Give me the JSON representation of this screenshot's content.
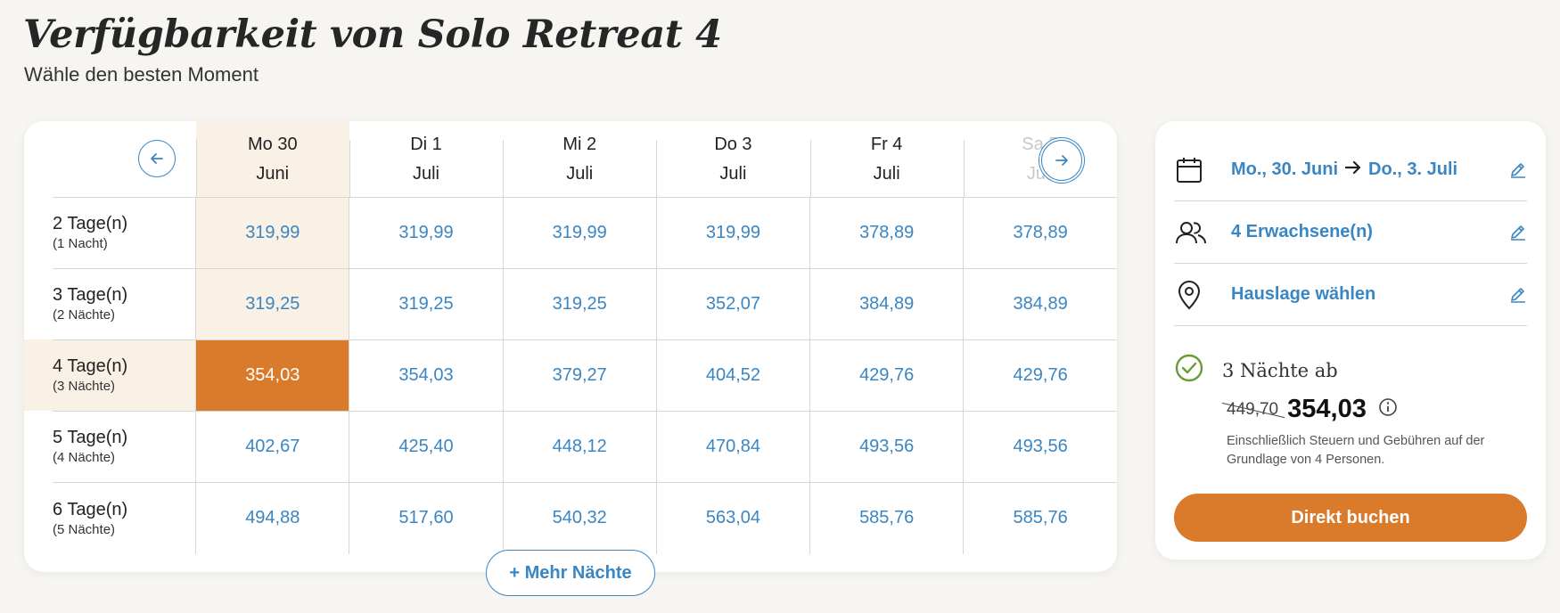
{
  "header": {
    "title": "Verfügbarkeit von Solo Retreat 4",
    "subtitle": "Wähle den besten Moment"
  },
  "calendar": {
    "columns": [
      {
        "day": "Mo 30",
        "month": "Juni"
      },
      {
        "day": "Di 1",
        "month": "Juli"
      },
      {
        "day": "Mi 2",
        "month": "Juli"
      },
      {
        "day": "Do 3",
        "month": "Juli"
      },
      {
        "day": "Fr 4",
        "month": "Juli"
      },
      {
        "day": "Sa 5",
        "month": "Juli"
      }
    ],
    "rows": [
      {
        "label": "2 Tage(n)",
        "sub": "(1 Nacht)",
        "prices": [
          "319,99",
          "319,99",
          "319,99",
          "319,99",
          "378,89",
          "378,89"
        ]
      },
      {
        "label": "3 Tage(n)",
        "sub": "(2 Nächte)",
        "prices": [
          "319,25",
          "319,25",
          "319,25",
          "352,07",
          "384,89",
          "384,89"
        ]
      },
      {
        "label": "4 Tage(n)",
        "sub": "(3 Nächte)",
        "prices": [
          "354,03",
          "354,03",
          "379,27",
          "404,52",
          "429,76",
          "429,76"
        ]
      },
      {
        "label": "5 Tage(n)",
        "sub": "(4 Nächte)",
        "prices": [
          "402,67",
          "425,40",
          "448,12",
          "470,84",
          "493,56",
          "493,56"
        ]
      },
      {
        "label": "6 Tage(n)",
        "sub": "(5 Nächte)",
        "prices": [
          "494,88",
          "517,60",
          "540,32",
          "563,04",
          "585,76",
          "585,76"
        ]
      }
    ],
    "selected": {
      "column": 0,
      "row": 2
    },
    "more_nights_label": "+ Mehr Nächte"
  },
  "booking": {
    "date_from": "Mo., 30. Juni",
    "date_to": "Do., 3. Juli",
    "guests": "4 Erwachsene(n)",
    "location": "Hauslage wählen",
    "nights_text": "3 Nächte ab",
    "old_price": "449,70",
    "new_price": "354,03",
    "note": "Einschließlich Steuern und Gebühren auf der Grundlage von 4 Personen.",
    "book_label": "Direkt buchen"
  },
  "icons": {
    "prev": "arrow-left-icon",
    "next": "arrow-right-icon",
    "calendar": "calendar-icon",
    "guests": "users-icon",
    "location": "map-pin-icon",
    "edit": "pencil-icon",
    "check": "check-circle-icon",
    "info": "info-icon"
  },
  "colors": {
    "accent_orange": "#d97b2b",
    "highlight": "#faf1e6",
    "link_blue": "#3a86c3",
    "check_green": "#6a9a3a",
    "background": "#f7f5f1"
  }
}
